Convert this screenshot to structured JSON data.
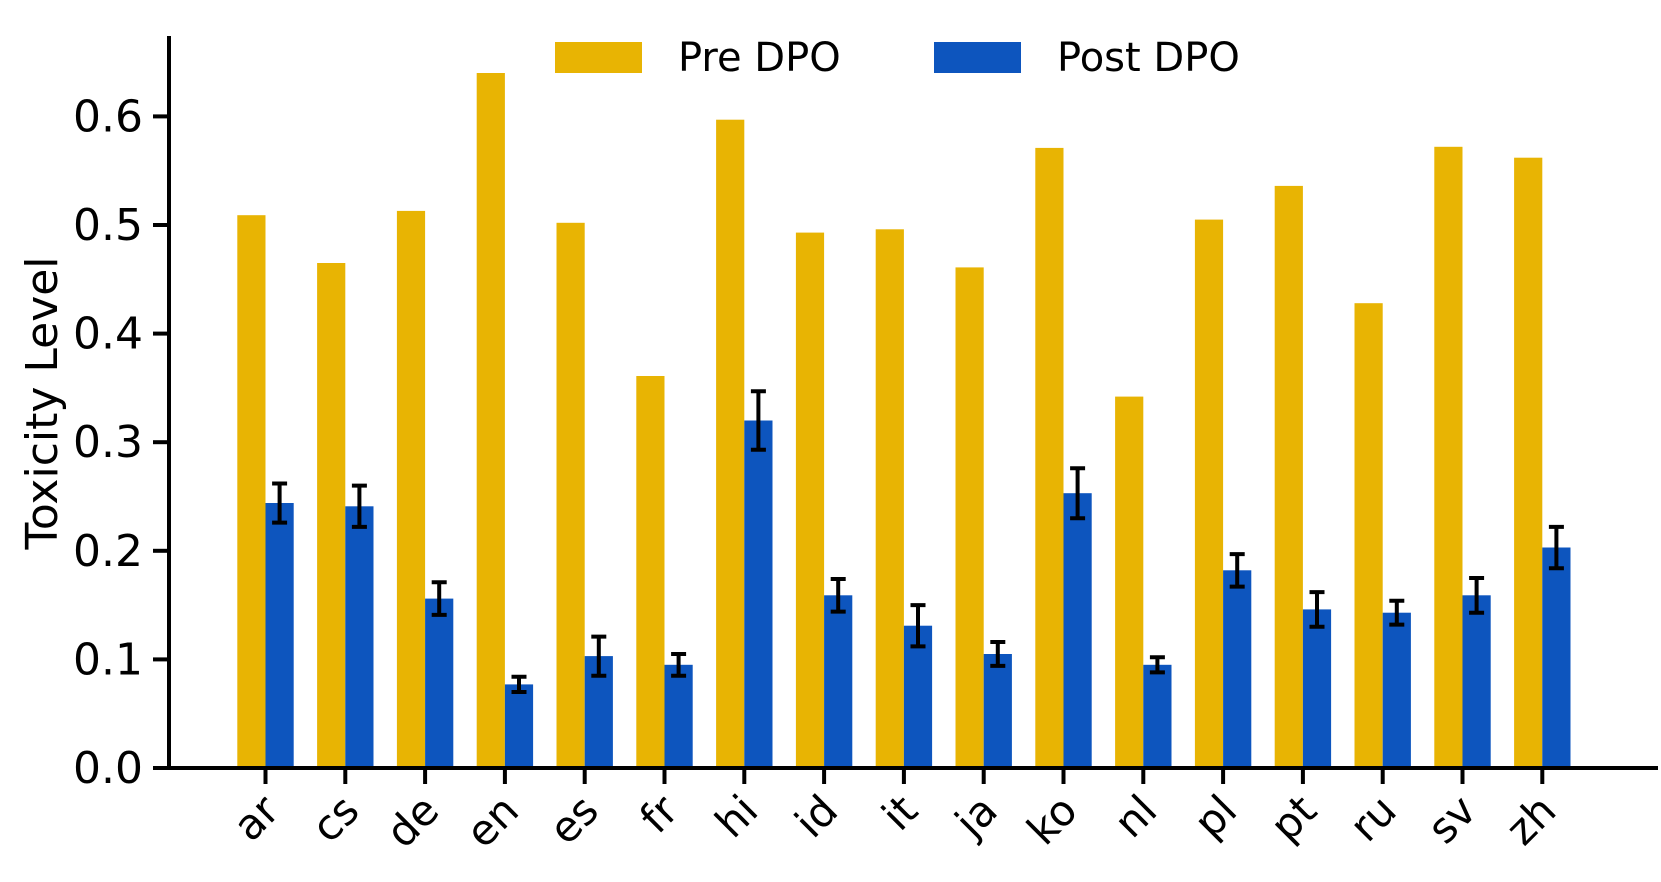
{
  "chart_data": {
    "type": "bar",
    "title": "",
    "xlabel": "",
    "ylabel": "Toxicity Level",
    "categories": [
      "ar",
      "cs",
      "de",
      "en",
      "es",
      "fr",
      "hi",
      "id",
      "it",
      "ja",
      "ko",
      "nl",
      "pl",
      "pt",
      "ru",
      "sv",
      "zh"
    ],
    "series": [
      {
        "name": "Pre DPO",
        "color": "#E8B403",
        "values": [
          0.509,
          0.465,
          0.513,
          0.64,
          0.502,
          0.361,
          0.597,
          0.493,
          0.496,
          0.461,
          0.571,
          0.342,
          0.505,
          0.536,
          0.428,
          0.572,
          0.562
        ]
      },
      {
        "name": "Post DPO",
        "color": "#0D55BE",
        "values": [
          0.244,
          0.241,
          0.156,
          0.077,
          0.103,
          0.095,
          0.32,
          0.159,
          0.131,
          0.105,
          0.253,
          0.095,
          0.182,
          0.146,
          0.143,
          0.159,
          0.203
        ],
        "errors": [
          0.018,
          0.019,
          0.015,
          0.007,
          0.018,
          0.01,
          0.027,
          0.015,
          0.019,
          0.011,
          0.023,
          0.007,
          0.015,
          0.016,
          0.011,
          0.016,
          0.019
        ]
      }
    ],
    "yticks": [
      0.0,
      0.1,
      0.2,
      0.3,
      0.4,
      0.5,
      0.6
    ],
    "ytick_labels": [
      "0.0",
      "0.1",
      "0.2",
      "0.3",
      "0.4",
      "0.5",
      "0.6"
    ],
    "ylim": [
      0,
      0.674
    ],
    "grid": false,
    "legend_position": "upper center",
    "error_bar_color": "#000000",
    "axis_color": "#000000",
    "background_color": "#FFFFFF"
  }
}
